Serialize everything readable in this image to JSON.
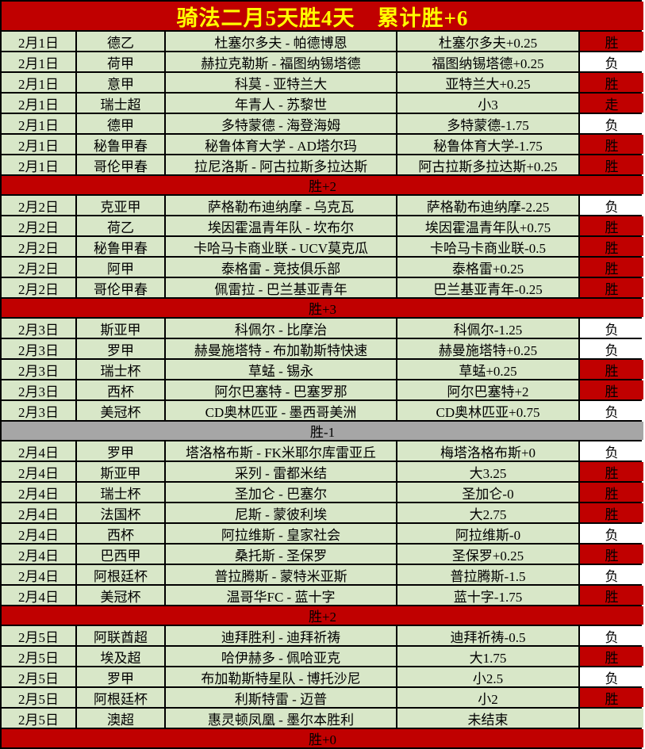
{
  "title": "骑法二月5天胜4天　累计胜+6",
  "colors": {
    "header_bg": "#c00000",
    "header_text": "#ffff00",
    "row_bg": "#d8e7c8",
    "win_bg": "#c00000",
    "loss_bg": "#ffffff",
    "summary_red_bg": "#c00000",
    "summary_gray_bg": "#a6a6a6",
    "grid_line": "#000000"
  },
  "sections": [
    {
      "summary": "胜+2",
      "summary_style": "red",
      "rows": [
        {
          "date": "2月1日",
          "league": "德乙",
          "match": "杜塞尔多夫 - 帕德博恩",
          "handicap": "杜塞尔多夫+0.25",
          "result": "胜",
          "result_type": "win"
        },
        {
          "date": "2月1日",
          "league": "荷甲",
          "match": "赫拉克勒斯 - 福图纳锡塔德",
          "handicap": "福图纳锡塔德+0.25",
          "result": "负",
          "result_type": "loss"
        },
        {
          "date": "2月1日",
          "league": "意甲",
          "match": "科莫 - 亚特兰大",
          "handicap": "亚特兰大+0.25",
          "result": "胜",
          "result_type": "win"
        },
        {
          "date": "2月1日",
          "league": "瑞士超",
          "match": "年青人 - 苏黎世",
          "handicap": "小3",
          "result": "走",
          "result_type": "push"
        },
        {
          "date": "2月1日",
          "league": "德甲",
          "match": "多特蒙德 - 海登海姆",
          "handicap": "多特蒙德-1.75",
          "result": "负",
          "result_type": "loss"
        },
        {
          "date": "2月1日",
          "league": "秘鲁甲春",
          "match": "秘鲁体育大学 - AD塔尔玛",
          "handicap": "秘鲁体育大学-1.75",
          "result": "胜",
          "result_type": "win"
        },
        {
          "date": "2月1日",
          "league": "哥伦甲春",
          "match": "拉尼洛斯 - 阿古拉斯多拉达斯",
          "handicap": "阿古拉斯多拉达斯+0.25",
          "result": "胜",
          "result_type": "win"
        }
      ]
    },
    {
      "summary": "胜+3",
      "summary_style": "red",
      "rows": [
        {
          "date": "2月2日",
          "league": "克亚甲",
          "match": "萨格勒布迪纳摩 - 乌克瓦",
          "handicap": "萨格勒布迪纳摩-2.25",
          "result": "负",
          "result_type": "loss"
        },
        {
          "date": "2月2日",
          "league": "荷乙",
          "match": "埃因霍温青年队 - 坎布尔",
          "handicap": "埃因霍温青年队+0.75",
          "result": "胜",
          "result_type": "win"
        },
        {
          "date": "2月2日",
          "league": "秘鲁甲春",
          "match": "卡哈马卡商业联 - UCV莫克瓜",
          "handicap": "卡哈马卡商业联-0.5",
          "result": "胜",
          "result_type": "win"
        },
        {
          "date": "2月2日",
          "league": "阿甲",
          "match": "泰格雷 - 竞技俱乐部",
          "handicap": "泰格雷+0.25",
          "result": "胜",
          "result_type": "win"
        },
        {
          "date": "2月2日",
          "league": "哥伦甲春",
          "match": "佩雷拉 - 巴兰基亚青年",
          "handicap": "巴兰基亚青年-0.25",
          "result": "胜",
          "result_type": "win"
        }
      ]
    },
    {
      "summary": "胜-1",
      "summary_style": "gray",
      "rows": [
        {
          "date": "2月3日",
          "league": "斯亚甲",
          "match": "科佩尔 - 比摩治",
          "handicap": "科佩尔-1.25",
          "result": "负",
          "result_type": "loss"
        },
        {
          "date": "2月3日",
          "league": "罗甲",
          "match": "赫曼施塔特 - 布加勒斯特快速",
          "handicap": "赫曼施塔特+0.25",
          "result": "负",
          "result_type": "loss"
        },
        {
          "date": "2月3日",
          "league": "瑞士杯",
          "match": "草蜢 - 锡永",
          "handicap": "草蜢+0.25",
          "result": "胜",
          "result_type": "win"
        },
        {
          "date": "2月3日",
          "league": "西杯",
          "match": "阿尔巴塞特 - 巴塞罗那",
          "handicap": "阿尔巴塞特+2",
          "result": "胜",
          "result_type": "win"
        },
        {
          "date": "2月3日",
          "league": "美冠杯",
          "match": "CD奥林匹亚 - 墨西哥美洲",
          "handicap": "CD奥林匹亚+0.75",
          "result": "负",
          "result_type": "loss"
        }
      ]
    },
    {
      "summary": "胜+2",
      "summary_style": "red",
      "rows": [
        {
          "date": "2月4日",
          "league": "罗甲",
          "match": "塔洛格布斯 - FK米耶尔库雷亚丘",
          "handicap": "梅塔洛格布斯+0",
          "result": "负",
          "result_type": "loss"
        },
        {
          "date": "2月4日",
          "league": "斯亚甲",
          "match": "采列 - 雷都米结",
          "handicap": "大3.25",
          "result": "胜",
          "result_type": "win"
        },
        {
          "date": "2月4日",
          "league": "瑞士杯",
          "match": "圣加仑 - 巴塞尔",
          "handicap": "圣加仑-0",
          "result": "胜",
          "result_type": "win"
        },
        {
          "date": "2月4日",
          "league": "法国杯",
          "match": "尼斯 - 蒙彼利埃",
          "handicap": "大2.75",
          "result": "胜",
          "result_type": "win"
        },
        {
          "date": "2月4日",
          "league": "西杯",
          "match": "阿拉维斯 - 皇家社会",
          "handicap": "阿拉维斯-0",
          "result": "负",
          "result_type": "loss"
        },
        {
          "date": "2月4日",
          "league": "巴西甲",
          "match": "桑托斯 - 圣保罗",
          "handicap": "圣保罗+0.25",
          "result": "胜",
          "result_type": "win"
        },
        {
          "date": "2月4日",
          "league": "阿根廷杯",
          "match": "普拉腾斯 - 蒙特米亚斯",
          "handicap": "普拉腾斯-1.5",
          "result": "负",
          "result_type": "loss"
        },
        {
          "date": "2月4日",
          "league": "美冠杯",
          "match": "温哥华FC - 蓝十字",
          "handicap": "蓝十字-1.75",
          "result": "胜",
          "result_type": "win"
        }
      ]
    },
    {
      "summary": "胜+0",
      "summary_style": "red",
      "rows": [
        {
          "date": "2月5日",
          "league": "阿联酋超",
          "match": "迪拜胜利 - 迪拜祈祷",
          "handicap": "迪拜祈祷-0.5",
          "result": "负",
          "result_type": "loss"
        },
        {
          "date": "2月5日",
          "league": "埃及超",
          "match": "哈伊赫多 - 佩哈亚克",
          "handicap": "大1.75",
          "result": "胜",
          "result_type": "win"
        },
        {
          "date": "2月5日",
          "league": "罗甲",
          "match": "布加勒斯特星队 - 博托沙尼",
          "handicap": "小2.5",
          "result": "负",
          "result_type": "loss"
        },
        {
          "date": "2月5日",
          "league": "阿根廷杯",
          "match": "利斯特雷 - 迈普",
          "handicap": "小2",
          "result": "胜",
          "result_type": "win"
        },
        {
          "date": "2月5日",
          "league": "澳超",
          "match": "惠灵顿凤凰 - 墨尔本胜利",
          "handicap": "未结束",
          "result": "",
          "result_type": "pending"
        }
      ]
    }
  ]
}
